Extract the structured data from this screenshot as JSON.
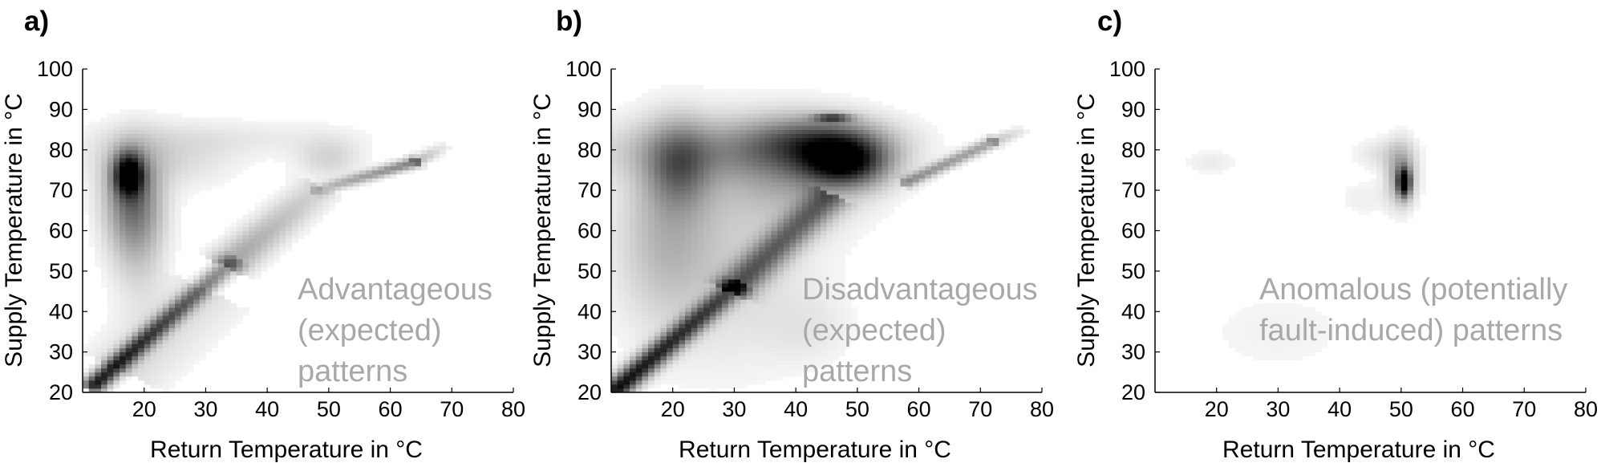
{
  "chart_data": [
    {
      "type": "heatmap",
      "panel_label": "a)",
      "xlabel": "Return Temperature in °C",
      "ylabel": "Supply Temperature in °C",
      "xlim": [
        10,
        80
      ],
      "ylim": [
        20,
        100
      ],
      "xticks": [
        20,
        30,
        40,
        50,
        60,
        70,
        80
      ],
      "yticks": [
        20,
        30,
        40,
        50,
        60,
        70,
        80,
        90,
        100
      ],
      "annotation": [
        "Advantageous",
        "(expected)",
        "patterns"
      ],
      "density_blobs": [
        {
          "x": 17.5,
          "y": 74,
          "sx": 1.6,
          "sy": 3.5,
          "w": 0.95
        },
        {
          "x": 18,
          "y": 68,
          "sx": 3,
          "sy": 8,
          "w": 0.4
        },
        {
          "x": 19,
          "y": 60,
          "sx": 3,
          "sy": 11,
          "w": 0.18
        },
        {
          "x": 22,
          "y": 78,
          "sx": 8,
          "sy": 5,
          "w": 0.12
        },
        {
          "x": 50,
          "y": 78,
          "sx": 3.5,
          "sy": 3.5,
          "w": 0.12
        },
        {
          "x": 35,
          "y": 83,
          "sx": 14,
          "sy": 3,
          "w": 0.05
        }
      ],
      "density_bands": [
        {
          "x0": 12,
          "y0": 22,
          "x1": 34,
          "y1": 52,
          "w0": 0.9,
          "w1": 0.35,
          "thick": 1.3
        },
        {
          "x0": 34,
          "y0": 52,
          "x1": 48,
          "y1": 70,
          "w0": 0.3,
          "w1": 0.12,
          "thick": 2.5
        },
        {
          "x0": 48,
          "y0": 70,
          "x1": 64,
          "y1": 77,
          "w0": 0.18,
          "w1": 0.45,
          "thick": 0.9
        },
        {
          "x0": 64,
          "y0": 77,
          "x1": 69,
          "y1": 81,
          "w0": 0.25,
          "w1": 0.05,
          "thick": 0.9
        },
        {
          "x0": 17,
          "y0": 26,
          "x1": 30,
          "y1": 44,
          "w0": 0.1,
          "w1": 0.08,
          "thick": 5
        }
      ]
    },
    {
      "type": "heatmap",
      "panel_label": "b)",
      "xlabel": "Return Temperature in °C",
      "ylabel": "Supply Temperature in °C",
      "xlim": [
        10,
        80
      ],
      "ylim": [
        20,
        100
      ],
      "xticks": [
        20,
        30,
        40,
        50,
        60,
        70,
        80
      ],
      "yticks": [
        20,
        30,
        40,
        50,
        60,
        70,
        80,
        90,
        100
      ],
      "annotation": [
        "Disadvantageous",
        "(expected)",
        "patterns"
      ],
      "density_blobs": [
        {
          "x": 48,
          "y": 77,
          "sx": 4.5,
          "sy": 4,
          "w": 0.85
        },
        {
          "x": 44,
          "y": 82,
          "sx": 7,
          "sy": 4,
          "w": 0.45
        },
        {
          "x": 46,
          "y": 88,
          "sx": 2,
          "sy": 0.7,
          "w": 0.6
        },
        {
          "x": 21,
          "y": 76,
          "sx": 3.5,
          "sy": 7,
          "w": 0.4
        },
        {
          "x": 30,
          "y": 80,
          "sx": 14,
          "sy": 5,
          "w": 0.25
        },
        {
          "x": 19,
          "y": 60,
          "sx": 5,
          "sy": 14,
          "w": 0.18
        },
        {
          "x": 28,
          "y": 55,
          "sx": 10,
          "sy": 18,
          "w": 0.12
        },
        {
          "x": 40,
          "y": 75,
          "sx": 8,
          "sy": 8,
          "w": 0.25
        },
        {
          "x": 42,
          "y": 36,
          "sx": 5,
          "sy": 6,
          "w": 0.05
        }
      ],
      "density_bands": [
        {
          "x0": 11,
          "y0": 21,
          "x1": 30,
          "y1": 46,
          "w0": 0.95,
          "w1": 0.55,
          "thick": 1.5
        },
        {
          "x0": 30,
          "y0": 46,
          "x1": 45,
          "y1": 68,
          "w0": 0.55,
          "w1": 0.45,
          "thick": 2.2
        },
        {
          "x0": 58,
          "y0": 72,
          "x1": 72,
          "y1": 82,
          "w0": 0.35,
          "w1": 0.3,
          "thick": 0.9
        },
        {
          "x0": 72,
          "y0": 82,
          "x1": 77,
          "y1": 85,
          "w0": 0.2,
          "w1": 0.05,
          "thick": 0.9
        }
      ]
    },
    {
      "type": "heatmap",
      "panel_label": "c)",
      "xlabel": "Return Temperature in °C",
      "ylabel": "Supply Temperature in °C",
      "xlim": [
        10,
        80
      ],
      "ylim": [
        20,
        100
      ],
      "xticks": [
        20,
        30,
        40,
        50,
        60,
        70,
        80
      ],
      "yticks": [
        20,
        30,
        40,
        50,
        60,
        70,
        80,
        90,
        100
      ],
      "annotation": [
        "Anomalous (potentially",
        "fault-induced) patterns"
      ],
      "density_blobs": [
        {
          "x": 50.5,
          "y": 72,
          "sx": 0.7,
          "sy": 2.3,
          "w": 1.0
        },
        {
          "x": 50,
          "y": 74,
          "sx": 1.6,
          "sy": 5,
          "w": 0.35
        },
        {
          "x": 47,
          "y": 79,
          "sx": 3,
          "sy": 2.5,
          "w": 0.08
        },
        {
          "x": 19,
          "y": 77,
          "sx": 3,
          "sy": 2,
          "w": 0.05
        },
        {
          "x": 30,
          "y": 35,
          "sx": 10,
          "sy": 8,
          "w": 0.03
        },
        {
          "x": 44,
          "y": 68,
          "sx": 3,
          "sy": 3,
          "w": 0.04
        }
      ],
      "density_bands": []
    }
  ]
}
